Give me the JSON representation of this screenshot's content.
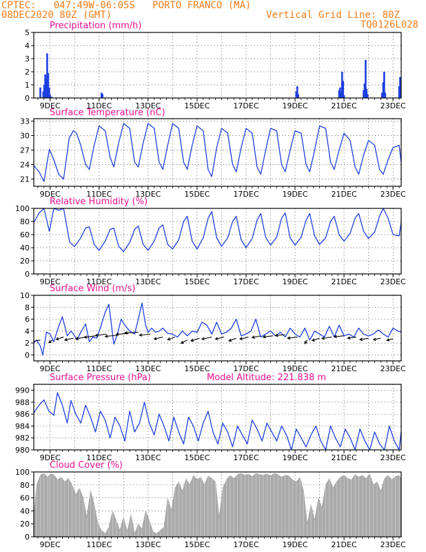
{
  "header": {
    "line1": "CPTEC:   047:49W-06:05S   PORTO FRANCO (MA)",
    "line2": "08DEC2020 80Z (GMT)",
    "grid_note": "Vertical Grid Line: 80Z",
    "code": "TQ0126L028"
  },
  "colors": {
    "header": "#f07d1a",
    "title": "#e8108f",
    "series": "#1d3fe0",
    "cloud": "#aaaaaa",
    "wind_barb": "#000000",
    "grid": "#666666"
  },
  "chart_data": [
    {
      "type": "bar",
      "title": "Precipitation (mm/h)",
      "ylim": [
        0,
        5
      ],
      "yticks": [
        0,
        1,
        2,
        3,
        4,
        5
      ],
      "xlim": [
        8.333,
        23.333
      ],
      "xtick_days": [
        9,
        11,
        13,
        15,
        17,
        19,
        21,
        23
      ],
      "xtick_labels": [
        "9DEC",
        "11DEC",
        "13DEC",
        "15DEC",
        "17DEC",
        "19DEC",
        "21DEC",
        "23DEC"
      ],
      "bars": [
        [
          8.6,
          0.8
        ],
        [
          8.72,
          0.5
        ],
        [
          8.76,
          1.0
        ],
        [
          8.8,
          1.8
        ],
        [
          8.84,
          1.5
        ],
        [
          8.88,
          3.4
        ],
        [
          8.92,
          1.9
        ],
        [
          8.96,
          0.8
        ],
        [
          8.99,
          0.3
        ],
        [
          9.05,
          0.1
        ],
        [
          11.1,
          0.4
        ],
        [
          11.14,
          0.3
        ],
        [
          19.05,
          0.5
        ],
        [
          19.09,
          0.9
        ],
        [
          19.13,
          0.3
        ],
        [
          20.8,
          0.6
        ],
        [
          20.84,
          0.8
        ],
        [
          20.88,
          0.4
        ],
        [
          20.92,
          2.0
        ],
        [
          20.96,
          1.3
        ],
        [
          21.0,
          0.2
        ],
        [
          21.8,
          0.6
        ],
        [
          21.84,
          1.1
        ],
        [
          21.88,
          2.9
        ],
        [
          21.92,
          0.7
        ],
        [
          21.96,
          0.3
        ],
        [
          22.55,
          0.4
        ],
        [
          22.6,
          1.2
        ],
        [
          22.64,
          2.0
        ],
        [
          22.68,
          0.4
        ],
        [
          23.25,
          0.9
        ],
        [
          23.29,
          1.6
        ]
      ]
    },
    {
      "type": "line",
      "title": "Surface Temperature (nC)",
      "ylim": [
        19.5,
        33.5
      ],
      "yticks": [
        21,
        24,
        27,
        30,
        33
      ],
      "xlim": [
        8.333,
        23.333
      ],
      "xtick_days": [
        9,
        11,
        13,
        15,
        17,
        19,
        21,
        23
      ],
      "xtick_labels": [
        "9DEC",
        "11DEC",
        "13DEC",
        "15DEC",
        "17DEC",
        "19DEC",
        "21DEC",
        "23DEC"
      ],
      "x": [
        8.33,
        8.55,
        8.75,
        8.97,
        9.15,
        9.35,
        9.55,
        9.78,
        9.95,
        10.08,
        10.25,
        10.45,
        10.6,
        10.8,
        11.0,
        11.25,
        11.45,
        11.6,
        11.8,
        12.0,
        12.25,
        12.45,
        12.6,
        12.8,
        13.0,
        13.25,
        13.45,
        13.6,
        13.8,
        14.0,
        14.25,
        14.45,
        14.6,
        14.8,
        15.0,
        15.25,
        15.45,
        15.6,
        15.8,
        16.0,
        16.25,
        16.45,
        16.6,
        16.8,
        17.0,
        17.25,
        17.45,
        17.6,
        17.8,
        18.0,
        18.25,
        18.45,
        18.6,
        18.8,
        19.0,
        19.25,
        19.45,
        19.6,
        19.8,
        20.0,
        20.25,
        20.45,
        20.6,
        20.8,
        21.0,
        21.25,
        21.45,
        21.6,
        21.8,
        22.0,
        22.25,
        22.45,
        22.6,
        22.8,
        23.0,
        23.25,
        23.33
      ],
      "y": [
        23.8,
        22.5,
        20.5,
        27.2,
        25.0,
        22.0,
        21.0,
        29.5,
        31.0,
        30.5,
        28.0,
        24.0,
        23.0,
        28.0,
        32.0,
        31.0,
        25.5,
        23.5,
        28.5,
        32.5,
        31.5,
        24.5,
        23.5,
        28.5,
        32.5,
        31.5,
        24.5,
        23.0,
        28.0,
        32.5,
        31.5,
        24.5,
        23.0,
        28.0,
        32.0,
        31.0,
        23.0,
        21.5,
        27.5,
        31.5,
        30.5,
        24.0,
        22.5,
        27.5,
        31.5,
        30.5,
        23.5,
        22.0,
        27.0,
        31.5,
        31.0,
        24.0,
        22.5,
        27.0,
        31.0,
        30.5,
        24.0,
        22.5,
        27.0,
        32.0,
        31.5,
        24.5,
        23.0,
        27.0,
        30.5,
        29.0,
        23.5,
        22.0,
        26.0,
        29.0,
        28.0,
        23.0,
        22.0,
        25.0,
        27.5,
        28.0,
        24.5
      ]
    },
    {
      "type": "line",
      "title": "Relative Humidity (%)",
      "ylim": [
        0,
        100
      ],
      "yticks": [
        0,
        20,
        40,
        60,
        80,
        100
      ],
      "xlim": [
        8.333,
        23.333
      ],
      "xtick_days": [
        9,
        11,
        13,
        15,
        17,
        19,
        21,
        23
      ],
      "xtick_labels": [
        "9DEC",
        "11DEC",
        "13DEC",
        "15DEC",
        "17DEC",
        "19DEC",
        "21DEC",
        "23DEC"
      ],
      "x": [
        8.33,
        8.55,
        8.75,
        8.97,
        9.15,
        9.35,
        9.55,
        9.8,
        10.0,
        10.25,
        10.45,
        10.6,
        10.8,
        11.0,
        11.25,
        11.45,
        11.6,
        11.8,
        12.0,
        12.25,
        12.45,
        12.6,
        12.8,
        13.0,
        13.25,
        13.45,
        13.6,
        13.8,
        14.0,
        14.25,
        14.45,
        14.6,
        14.8,
        15.0,
        15.25,
        15.45,
        15.6,
        15.8,
        16.0,
        16.25,
        16.45,
        16.6,
        16.8,
        17.0,
        17.25,
        17.45,
        17.6,
        17.8,
        18.0,
        18.25,
        18.45,
        18.6,
        18.8,
        19.0,
        19.25,
        19.45,
        19.6,
        19.8,
        20.0,
        20.25,
        20.45,
        20.6,
        20.8,
        21.0,
        21.25,
        21.45,
        21.6,
        21.8,
        22.0,
        22.25,
        22.45,
        22.6,
        22.8,
        23.0,
        23.25,
        23.33
      ],
      "y": [
        78,
        93,
        100,
        65,
        100,
        97,
        100,
        48,
        42,
        55,
        70,
        72,
        45,
        36,
        50,
        68,
        70,
        42,
        34,
        48,
        68,
        73,
        45,
        36,
        50,
        70,
        75,
        45,
        38,
        52,
        80,
        88,
        50,
        38,
        55,
        85,
        95,
        55,
        42,
        55,
        80,
        88,
        52,
        40,
        54,
        82,
        92,
        56,
        44,
        56,
        85,
        93,
        55,
        44,
        56,
        82,
        92,
        58,
        45,
        55,
        80,
        88,
        60,
        50,
        62,
        85,
        92,
        65,
        54,
        64,
        88,
        100,
        85,
        60,
        58,
        78
      ]
    },
    {
      "type": "line",
      "title": "Surface Wind (m/s)",
      "ylim": [
        -1,
        10
      ],
      "yticks": [
        0,
        2,
        4,
        6,
        8,
        10
      ],
      "xlim": [
        8.333,
        23.333
      ],
      "xtick_days": [
        9,
        11,
        13,
        15,
        17,
        19,
        21,
        23
      ],
      "xtick_labels": [
        "9DEC",
        "11DEC",
        "13DEC",
        "15DEC",
        "17DEC",
        "19DEC",
        "21DEC",
        "23DEC"
      ],
      "x": [
        8.33,
        8.45,
        8.6,
        8.7,
        8.85,
        9.0,
        9.15,
        9.35,
        9.5,
        9.7,
        9.85,
        9.95,
        10.1,
        10.25,
        10.45,
        10.6,
        10.75,
        10.9,
        11.05,
        11.25,
        11.4,
        11.6,
        11.75,
        11.9,
        12.05,
        12.25,
        12.45,
        12.6,
        12.75,
        12.9,
        13.0,
        13.15,
        13.3,
        13.45,
        13.6,
        13.8,
        14.0,
        14.2,
        14.4,
        14.6,
        14.8,
        15.0,
        15.2,
        15.4,
        15.6,
        15.8,
        16.0,
        16.2,
        16.4,
        16.6,
        16.8,
        17.0,
        17.2,
        17.4,
        17.6,
        17.8,
        18.0,
        18.2,
        18.4,
        18.6,
        18.8,
        19.0,
        19.2,
        19.4,
        19.6,
        19.8,
        20.0,
        20.2,
        20.4,
        20.6,
        20.8,
        21.0,
        21.2,
        21.4,
        21.6,
        21.8,
        22.0,
        22.2,
        22.4,
        22.6,
        22.8,
        23.0,
        23.2,
        23.33
      ],
      "y": [
        2.0,
        2.5,
        1.5,
        0.0,
        3.8,
        3.5,
        2.2,
        4.8,
        6.4,
        3.2,
        4.0,
        3.5,
        2.5,
        3.8,
        5.2,
        2.2,
        3.0,
        2.8,
        4.5,
        7.2,
        8.5,
        1.8,
        3.5,
        6.0,
        5.0,
        4.0,
        3.5,
        6.0,
        8.7,
        5.0,
        3.8,
        4.5,
        3.8,
        4.0,
        4.5,
        3.6,
        3.5,
        3.0,
        4.0,
        3.2,
        4.0,
        3.8,
        5.5,
        5.0,
        3.5,
        5.5,
        3.5,
        3.8,
        4.5,
        6.0,
        3.2,
        3.5,
        4.0,
        6.0,
        3.0,
        3.5,
        4.0,
        3.2,
        3.8,
        3.0,
        4.5,
        3.5,
        3.0,
        4.5,
        2.5,
        4.0,
        3.5,
        3.0,
        4.8,
        3.0,
        5.0,
        3.2,
        3.5,
        3.0,
        4.5,
        3.5,
        3.2,
        3.5,
        4.2,
        3.5,
        3.0,
        4.5,
        4.0,
        3.8
      ],
      "arrows": [
        [
          8.6,
          2.5,
          0.35,
          0.25
        ],
        [
          9.1,
          2.5,
          0.15,
          0.45
        ],
        [
          9.55,
          3.0,
          0.3,
          0.4
        ],
        [
          9.95,
          2.8,
          0.35,
          0.3
        ],
        [
          10.45,
          3.0,
          0.4,
          0.3
        ],
        [
          10.85,
          3.2,
          0.45,
          0.25
        ],
        [
          11.3,
          3.5,
          0.45,
          0.25
        ],
        [
          11.75,
          3.3,
          0.5,
          0.2
        ],
        [
          12.2,
          3.6,
          0.5,
          0.15
        ],
        [
          12.6,
          3.8,
          0.55,
          0.1
        ],
        [
          13.1,
          3.5,
          0.45,
          0.2
        ],
        [
          13.6,
          3.0,
          0.35,
          0.35
        ],
        [
          14.1,
          3.0,
          0.3,
          0.45
        ],
        [
          14.6,
          2.5,
          0.25,
          0.55
        ],
        [
          15.1,
          2.8,
          0.35,
          0.45
        ],
        [
          15.6,
          3.0,
          0.4,
          0.35
        ],
        [
          16.1,
          3.0,
          0.35,
          0.35
        ],
        [
          16.6,
          2.8,
          0.3,
          0.45
        ],
        [
          17.1,
          3.0,
          0.35,
          0.35
        ],
        [
          17.6,
          3.2,
          0.35,
          0.3
        ],
        [
          18.1,
          3.2,
          0.4,
          0.2
        ],
        [
          18.6,
          3.4,
          0.4,
          0.15
        ],
        [
          19.1,
          3.0,
          0.4,
          0.2
        ],
        [
          19.5,
          2.5,
          0.1,
          0.6
        ],
        [
          20.0,
          2.8,
          0.3,
          0.4
        ],
        [
          20.5,
          3.0,
          0.4,
          0.25
        ],
        [
          21.0,
          3.2,
          0.4,
          0.15
        ],
        [
          21.5,
          3.0,
          0.35,
          0.2
        ],
        [
          22.0,
          2.8,
          0.35,
          0.25
        ],
        [
          22.5,
          2.8,
          0.3,
          0.25
        ],
        [
          23.0,
          2.7,
          0.25,
          0.25
        ]
      ]
    },
    {
      "type": "line",
      "title": "Surface Pressure (hPa)",
      "annotation": "Model Altitude: 221.838 m",
      "ylim": [
        980,
        991
      ],
      "yticks": [
        980,
        982,
        984,
        986,
        988,
        990
      ],
      "xlim": [
        8.333,
        23.333
      ],
      "xtick_days": [
        9,
        11,
        13,
        15,
        17,
        19,
        21,
        23
      ],
      "xtick_labels": [
        "9DEC",
        "11DEC",
        "13DEC",
        "15DEC",
        "17DEC",
        "19DEC",
        "21DEC",
        "23DEC"
      ],
      "x": [
        8.33,
        8.55,
        8.75,
        8.95,
        9.15,
        9.3,
        9.5,
        9.7,
        9.85,
        10.05,
        10.25,
        10.45,
        10.65,
        10.85,
        11.05,
        11.25,
        11.45,
        11.65,
        11.85,
        12.05,
        12.25,
        12.45,
        12.65,
        12.85,
        13.05,
        13.25,
        13.45,
        13.65,
        13.85,
        14.05,
        14.25,
        14.45,
        14.65,
        14.85,
        15.05,
        15.25,
        15.45,
        15.65,
        15.85,
        16.05,
        16.25,
        16.45,
        16.65,
        16.85,
        17.05,
        17.25,
        17.45,
        17.65,
        17.85,
        18.05,
        18.25,
        18.45,
        18.65,
        18.85,
        19.05,
        19.25,
        19.45,
        19.65,
        19.85,
        20.05,
        20.25,
        20.45,
        20.65,
        20.85,
        21.05,
        21.25,
        21.45,
        21.65,
        21.85,
        22.05,
        22.25,
        22.45,
        22.65,
        22.85,
        23.05,
        23.25,
        23.33
      ],
      "y": [
        986.2,
        987.5,
        988.4,
        986.5,
        985.8,
        989.6,
        987.5,
        984.5,
        988.3,
        986.0,
        984.5,
        987.5,
        985.5,
        983.0,
        986.5,
        985.0,
        982.0,
        985.5,
        984.0,
        981.5,
        986.5,
        983.0,
        984.5,
        988.0,
        984.5,
        982.5,
        986.0,
        984.0,
        981.5,
        985.5,
        983.0,
        981.0,
        985.5,
        984.0,
        981.5,
        984.5,
        986.5,
        983.0,
        981.0,
        984.5,
        983.0,
        980.5,
        984.0,
        982.5,
        981.0,
        985.0,
        983.5,
        981.5,
        984.5,
        983.0,
        981.5,
        984.0,
        982.5,
        980.0,
        983.5,
        982.0,
        980.5,
        982.5,
        984.0,
        981.5,
        980.0,
        984.0,
        982.0,
        980.5,
        983.5,
        982.0,
        980.0,
        983.5,
        981.5,
        980.0,
        983.0,
        981.0,
        980.0,
        984.0,
        981.5,
        980.0,
        983.0
      ]
    },
    {
      "type": "area",
      "title": "Cloud Cover (%)",
      "ylim": [
        0,
        100
      ],
      "yticks": [
        0,
        20,
        40,
        60,
        80,
        100
      ],
      "xlim": [
        8.333,
        23.333
      ],
      "xtick_days": [
        9,
        11,
        13,
        15,
        17,
        19,
        21,
        23
      ],
      "xtick_labels": [
        "9DEC",
        "11DEC",
        "13DEC",
        "15DEC",
        "17DEC",
        "19DEC",
        "21DEC",
        "23DEC"
      ],
      "x": [
        8.33,
        8.45,
        8.6,
        8.75,
        8.9,
        9.0,
        9.15,
        9.3,
        9.45,
        9.6,
        9.75,
        9.9,
        10.05,
        10.2,
        10.35,
        10.5,
        10.65,
        10.8,
        10.95,
        11.1,
        11.25,
        11.4,
        11.55,
        11.7,
        11.85,
        12.0,
        12.15,
        12.3,
        12.45,
        12.6,
        12.75,
        12.9,
        13.05,
        13.2,
        13.35,
        13.5,
        13.65,
        13.8,
        13.95,
        14.1,
        14.25,
        14.4,
        14.55,
        14.7,
        14.85,
        15.0,
        15.15,
        15.3,
        15.45,
        15.6,
        15.75,
        15.9,
        16.05,
        16.2,
        16.35,
        16.5,
        16.65,
        16.8,
        16.95,
        17.1,
        17.25,
        17.4,
        17.55,
        17.7,
        17.85,
        18.0,
        18.15,
        18.3,
        18.45,
        18.6,
        18.75,
        18.9,
        19.05,
        19.2,
        19.35,
        19.5,
        19.65,
        19.8,
        19.95,
        20.1,
        20.25,
        20.4,
        20.55,
        20.7,
        20.85,
        21.0,
        21.15,
        21.3,
        21.45,
        21.6,
        21.75,
        21.9,
        22.05,
        22.2,
        22.35,
        22.5,
        22.65,
        22.8,
        22.95,
        23.1,
        23.25,
        23.33
      ],
      "y": [
        30,
        80,
        95,
        98,
        92,
        97,
        96,
        88,
        92,
        85,
        90,
        80,
        65,
        75,
        60,
        30,
        72,
        50,
        20,
        10,
        5,
        15,
        40,
        25,
        10,
        30,
        8,
        35,
        5,
        20,
        12,
        40,
        25,
        8,
        5,
        10,
        15,
        60,
        40,
        75,
        85,
        70,
        90,
        80,
        95,
        88,
        92,
        80,
        94,
        90,
        85,
        30,
        75,
        88,
        95,
        90,
        96,
        98,
        95,
        97,
        93,
        98,
        96,
        95,
        97,
        94,
        98,
        96,
        92,
        95,
        94,
        88,
        85,
        92,
        70,
        20,
        50,
        25,
        60,
        45,
        80,
        90,
        75,
        85,
        92,
        95,
        90,
        88,
        96,
        92,
        95,
        90,
        97,
        80,
        85,
        70,
        90,
        95,
        88,
        93,
        95,
        90
      ]
    }
  ]
}
